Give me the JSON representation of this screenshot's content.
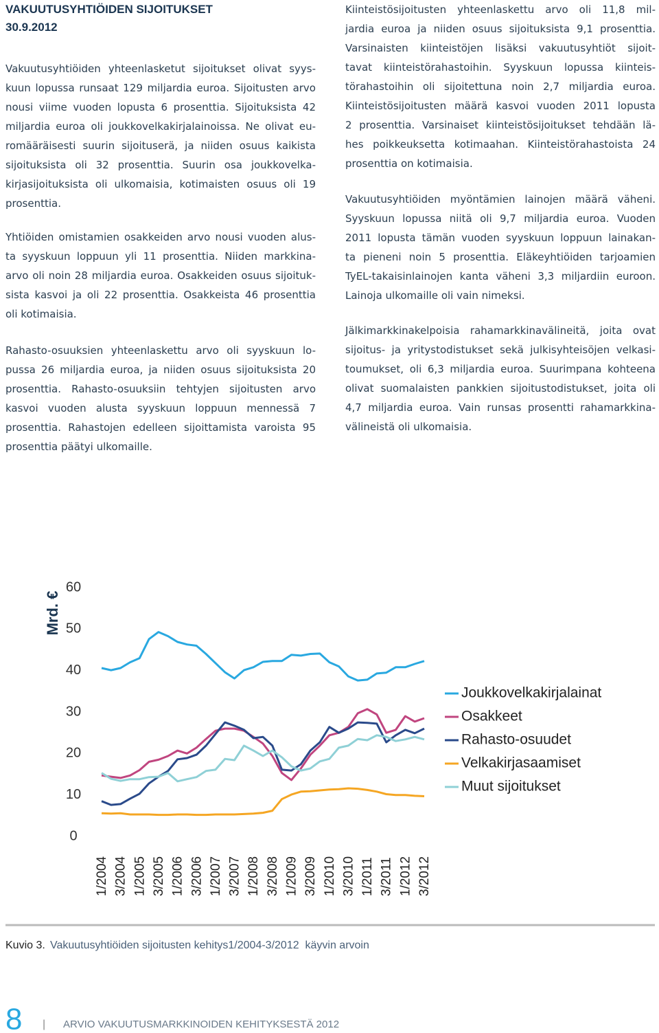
{
  "header": {
    "title": "VAKUUTUSYHTIÖIDEN SIJOITUKSET",
    "date": "30.9.2012"
  },
  "left_column": [
    [
      "Vakuutusyhtiöiden yhteenlasketut sijoitukset olivat syys-",
      "kuun lopussa runsaat 129 miljardia euroa. Sijoitusten arvo",
      "nousi viime vuoden lopusta 6 prosenttia. Sijoituksista 42",
      "miljardia euroa oli joukkovelkakirjalainoissa. Ne olivat eu-",
      "romääräisesti suurin sijoituserä, ja niiden osuus kaikista",
      "sijoituksista oli 32 prosenttia. Suurin osa joukkovelka-",
      "kirjasijoituksista oli ulkomaisia, kotimaisten osuus oli 19",
      "prosenttia."
    ],
    [
      "Yhtiöiden omistamien osakkeiden arvo nousi vuoden alus-",
      "ta syyskuun loppuun yli 11 prosenttia. Niiden markkina-",
      "arvo oli noin 28 miljardia euroa. Osakkeiden osuus sijoituk-",
      "sista kasvoi ja oli 22 prosenttia. Osakkeista 46 prosenttia",
      "oli kotimaisia."
    ],
    [
      "Rahasto-osuuksien yhteenlaskettu arvo oli syyskuun lo-",
      "pussa 26 miljardia euroa, ja niiden osuus sijoituksista 20",
      "prosenttia. Rahasto-osuuksiin tehtyjen sijoitusten arvo",
      "kasvoi vuoden alusta syyskuun loppuun mennessä 7",
      "prosenttia. Rahastojen edelleen sijoittamista varoista 95",
      "prosenttia päätyi ulkomaille."
    ]
  ],
  "right_column": [
    [
      "Kiinteistösijoitusten yhteenlaskettu arvo oli 11,8 mil-",
      "jardia euroa ja niiden osuus sijoituksista 9,1 prosenttia.",
      "Varsinaisten kiinteistöjen lisäksi vakuutusyhtiöt sijoit-",
      "tavat kiinteistörahastoihin. Syyskuun lopussa kiinteis-",
      "törahastoihin oli sijoitettuna noin 2,7 miljardia euroa.",
      "Kiinteistösijoitusten määrä kasvoi vuoden 2011 lopusta",
      "2 prosenttia. Varsinaiset kiinteistösijoitukset tehdään lä-",
      "hes poikkeuksetta kotimaahan. Kiinteistörahastoista 24",
      "prosenttia on kotimaisia."
    ],
    [
      "Vakuutusyhtiöiden myöntämien lainojen määrä väheni.",
      "Syyskuun lopussa niitä oli 9,7 miljardia euroa. Vuoden",
      "2011 lopusta tämän vuoden syyskuun loppuun lainakan-",
      "ta pieneni noin 5 prosenttia. Eläkeyhtiöiden tarjoamien",
      "TyEL-takaisinlainojen kanta väheni 3,3 miljardiin euroon.",
      "Lainoja ulkomaille oli vain nimeksi."
    ],
    [
      "Jälkimarkkinakelpoisia rahamarkkinavälineitä, joita ovat",
      "sijoitus- ja yritystodistukset sekä julkisyhteisöjen velkasi-",
      "toumukset, oli 6,3 miljardia euroa. Suurimpana kohteena",
      "olivat suomalaisten pankkien sijoitustodistukset, joita oli",
      "4,7 miljardia euroa. Vain runsas prosentti rahamarkkina-",
      "välineistä oli ulkomaisia."
    ]
  ],
  "chart_data": {
    "type": "line",
    "y_label": "Mrd. €",
    "ylim": [
      0,
      60
    ],
    "yticks": [
      0,
      10,
      20,
      30,
      40,
      50,
      60
    ],
    "grid": false,
    "legend": "right",
    "categories": [
      "1/2004",
      null,
      "3/2004",
      null,
      "1/2005",
      null,
      "3/2005",
      null,
      "1/2006",
      null,
      "3/2006",
      null,
      "1/2007",
      null,
      "3/2007",
      null,
      "1/2008",
      null,
      "3/2008",
      null,
      "1/2009",
      null,
      "3/2009",
      null,
      "1/2010",
      null,
      "3/2010",
      null,
      "1/2011",
      null,
      "3/2011",
      null,
      "1/2012",
      null,
      "3/2012"
    ],
    "series": [
      {
        "name": "Joukkovelkakirjalainat",
        "color": "#29a8e0",
        "values": [
          40.6,
          40.1,
          40.6,
          42,
          43,
          47.6,
          49.3,
          48.3,
          46.9,
          46.3,
          46,
          44,
          41.8,
          39.6,
          38.1,
          40.1,
          40.8,
          42.1,
          42.3,
          42.3,
          43.8,
          43.6,
          44,
          44.1,
          42,
          41,
          38.6,
          37.6,
          37.8,
          39.3,
          39.5,
          40.8,
          40.8,
          41.6,
          42.3
        ]
      },
      {
        "name": "Osakkeet",
        "color": "#c0457f",
        "values": [
          14.7,
          14.4,
          14.1,
          14.7,
          16,
          18,
          18.5,
          19.4,
          20.7,
          20,
          21.4,
          23.5,
          25.5,
          26,
          26,
          25.5,
          24,
          22.4,
          19.4,
          15.3,
          13.6,
          16.4,
          19.7,
          21.9,
          24.4,
          25,
          26.4,
          29.7,
          30.7,
          29.4,
          25,
          25.7,
          29,
          27.7,
          28.5
        ]
      },
      {
        "name": "Rahasto-osuudet",
        "color": "#2a4a8a",
        "values": [
          8.5,
          7.6,
          7.8,
          9.1,
          10.3,
          12.8,
          14.4,
          15.8,
          18.6,
          18.9,
          19.7,
          21.9,
          24.7,
          27.5,
          26.7,
          25.7,
          23.7,
          24,
          21.9,
          16.1,
          15.9,
          17.4,
          20.7,
          22.7,
          26.4,
          25,
          26,
          27.5,
          27.4,
          27.2,
          22.7,
          24.4,
          25.7,
          24.9,
          26
        ]
      },
      {
        "name": "Velkakirjasaamiset",
        "color": "#f5a623",
        "values": [
          5.6,
          5.5,
          5.6,
          5.3,
          5.3,
          5.3,
          5.2,
          5.2,
          5.3,
          5.3,
          5.2,
          5.2,
          5.3,
          5.3,
          5.3,
          5.4,
          5.5,
          5.7,
          6.2,
          9.0,
          10.1,
          10.8,
          10.9,
          11.1,
          11.3,
          11.4,
          11.6,
          11.5,
          11.2,
          10.8,
          10.2,
          10.0,
          10.0,
          9.8,
          9.7
        ]
      },
      {
        "name": "Muut sijoitukset",
        "color": "#8fd0d6",
        "values": [
          15.3,
          13.9,
          13.4,
          13.8,
          13.8,
          14.3,
          14.4,
          15.3,
          13.3,
          13.8,
          14.3,
          15.8,
          16.1,
          18.7,
          18.4,
          21.9,
          20.7,
          19.4,
          20.7,
          19.1,
          16.9,
          15.9,
          16.4,
          18.1,
          18.7,
          21.4,
          21.9,
          23.5,
          23.2,
          24.4,
          24,
          23,
          23.4,
          24,
          23.4
        ]
      }
    ]
  },
  "caption": {
    "label": "Kuvio 3.",
    "text": "Vakuutusyhtiöiden sijoitusten kehitys1/2004-3/2012  käyvin arvoin"
  },
  "footer": {
    "page": "8",
    "separator": "|",
    "publication": "ARVIO VAKUUTUSMARKKINOIDEN KEHITYKSESTÄ 2012"
  }
}
